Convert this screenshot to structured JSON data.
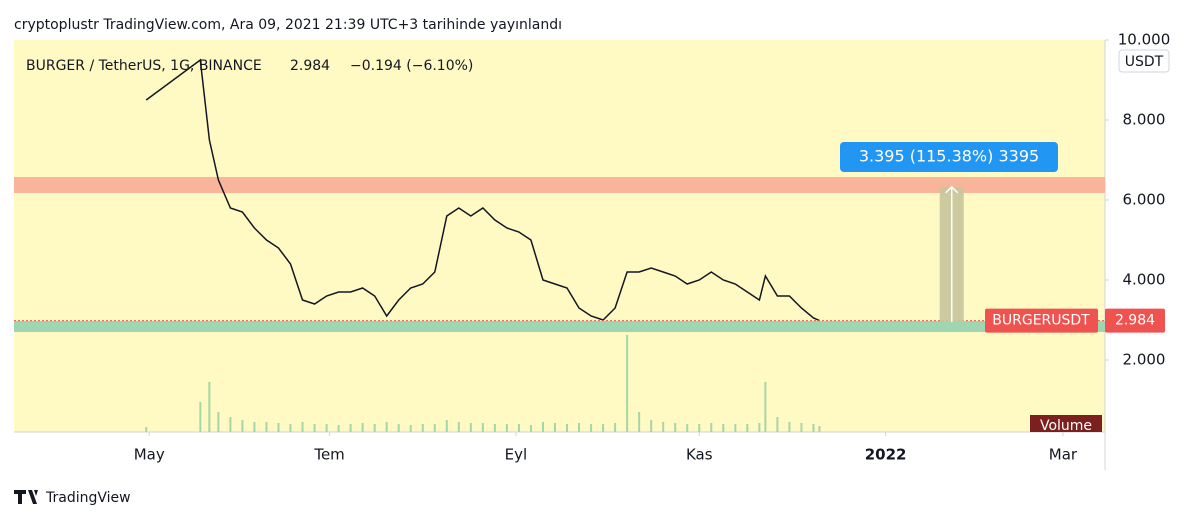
{
  "header": "cryptoplustr TradingView.com, Ara 09, 2021 21:39 UTC+3 tarihinde yayınlandı",
  "footer": "TradingView",
  "chart_data": {
    "type": "line",
    "symbol": "BURGER / TetherUS, 1G, BINANCE",
    "change": "−0.194 (−6.10%)",
    "ticker": "BURGERUSDT",
    "last_price": 2.984,
    "unit": "USDT",
    "volume_label": "Volume",
    "measure_label": "3.395 (115.38%) 3395",
    "color": "#131722",
    "grid": false,
    "xlim": [
      0,
      363
    ],
    "xticks": [
      {
        "value": 45,
        "label": "May"
      },
      {
        "value": 105,
        "label": "Tem"
      },
      {
        "value": 167,
        "label": "Eyl"
      },
      {
        "value": 228,
        "label": "Kas"
      },
      {
        "value": 290,
        "label": "2022"
      },
      {
        "value": 349,
        "label": "Mar"
      }
    ],
    "ylim": [
      0.2,
      10.0
    ],
    "yticks": [
      {
        "value": 10,
        "label": "10.000"
      },
      {
        "value": 8,
        "label": "8.000"
      },
      {
        "value": 6,
        "label": "6.000"
      },
      {
        "value": 4,
        "label": "4.000"
      },
      {
        "value": 2,
        "label": "2.000"
      }
    ],
    "x": [
      44,
      62,
      65,
      68,
      72,
      76,
      80,
      84,
      88,
      92,
      96,
      100,
      104,
      108,
      112,
      116,
      120,
      124,
      128,
      132,
      136,
      140,
      144,
      148,
      152,
      156,
      160,
      164,
      168,
      172,
      176,
      180,
      184,
      188,
      192,
      196,
      200,
      204,
      208,
      212,
      216,
      220,
      224,
      228,
      232,
      236,
      240,
      244,
      248,
      250,
      254,
      258,
      262,
      266,
      268
    ],
    "values": [
      8.5,
      9.5,
      7.5,
      6.5,
      5.8,
      5.7,
      5.3,
      5.0,
      4.8,
      4.4,
      3.5,
      3.4,
      3.6,
      3.7,
      3.7,
      3.8,
      3.6,
      3.1,
      3.5,
      3.8,
      3.9,
      4.2,
      5.6,
      5.8,
      5.6,
      5.8,
      5.5,
      5.3,
      5.2,
      5.0,
      4.0,
      3.9,
      3.8,
      3.3,
      3.1,
      3.0,
      3.3,
      4.2,
      4.2,
      4.3,
      4.2,
      4.1,
      3.9,
      4.0,
      4.2,
      4.0,
      3.9,
      3.7,
      3.5,
      4.1,
      3.6,
      3.6,
      3.3,
      3.05,
      2.984
    ],
    "vlim": [
      0,
      100
    ],
    "volume": [
      5,
      30,
      50,
      20,
      15,
      12,
      10,
      10,
      9,
      8,
      10,
      8,
      8,
      7,
      8,
      9,
      8,
      10,
      8,
      7,
      8,
      8,
      12,
      10,
      9,
      9,
      8,
      8,
      8,
      7,
      10,
      9,
      8,
      9,
      8,
      8,
      9,
      97,
      20,
      12,
      10,
      9,
      8,
      8,
      9,
      8,
      8,
      8,
      9,
      50,
      15,
      10,
      9,
      8,
      6
    ],
    "volume_color": "#a5d6a7",
    "zones": [
      {
        "from": 6.175,
        "to": 6.575,
        "color": "#f9b59c"
      },
      {
        "from": 2.7,
        "to": 2.975,
        "color": "#9fd5b0"
      }
    ],
    "measure": {
      "x": [
        308,
        316
      ],
      "from": 2.95,
      "to": 6.33
    }
  }
}
